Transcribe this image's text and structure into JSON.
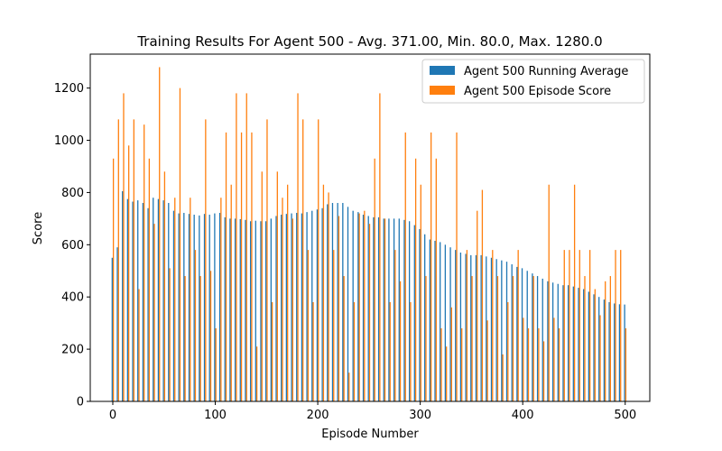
{
  "chart_data": {
    "type": "bar",
    "title": "Training Results For Agent 500 - Avg. 371.00, Min. 80.0, Max. 1280.0",
    "xlabel": "Episode Number",
    "ylabel": "Score",
    "xlim": [
      -22,
      524
    ],
    "ylim": [
      0,
      1330
    ],
    "xticks": [
      0,
      100,
      200,
      300,
      400,
      500
    ],
    "yticks": [
      0,
      200,
      400,
      600,
      800,
      1000,
      1200
    ],
    "legend_placement": "top-right",
    "grid": false,
    "x": [
      0,
      5,
      10,
      15,
      20,
      25,
      30,
      35,
      40,
      45,
      50,
      55,
      60,
      65,
      70,
      75,
      80,
      85,
      90,
      95,
      100,
      105,
      110,
      115,
      120,
      125,
      130,
      135,
      140,
      145,
      150,
      155,
      160,
      165,
      170,
      175,
      180,
      185,
      190,
      195,
      200,
      205,
      210,
      215,
      220,
      225,
      230,
      235,
      240,
      245,
      250,
      255,
      260,
      265,
      270,
      275,
      280,
      285,
      290,
      295,
      300,
      305,
      310,
      315,
      320,
      325,
      330,
      335,
      340,
      345,
      350,
      355,
      360,
      365,
      370,
      375,
      380,
      385,
      390,
      395,
      400,
      405,
      410,
      415,
      420,
      425,
      430,
      435,
      440,
      445,
      450,
      455,
      460,
      465,
      470,
      475,
      480,
      485,
      490,
      495,
      500
    ],
    "series": [
      {
        "name": "Agent 500 Running Average",
        "color": "#1f77b4",
        "values": [
          550,
          590,
          805,
          775,
          765,
          770,
          760,
          740,
          780,
          775,
          770,
          760,
          730,
          720,
          722,
          718,
          715,
          712,
          718,
          715,
          720,
          722,
          705,
          700,
          700,
          698,
          695,
          690,
          692,
          690,
          690,
          700,
          710,
          715,
          718,
          720,
          722,
          720,
          725,
          730,
          735,
          740,
          755,
          760,
          760,
          760,
          745,
          730,
          725,
          715,
          710,
          705,
          705,
          700,
          700,
          700,
          700,
          695,
          690,
          675,
          660,
          640,
          620,
          615,
          610,
          600,
          590,
          580,
          570,
          565,
          560,
          560,
          560,
          555,
          550,
          545,
          540,
          535,
          525,
          515,
          510,
          500,
          490,
          480,
          470,
          460,
          455,
          450,
          445,
          445,
          440,
          435,
          430,
          420,
          410,
          400,
          390,
          380,
          375,
          372,
          371
        ]
      },
      {
        "name": "Agent 500 Episode Score",
        "color": "#ff7f0e",
        "values": [
          930,
          1080,
          1180,
          980,
          1080,
          430,
          1060,
          930,
          680,
          1280,
          880,
          510,
          780,
          1200,
          480,
          780,
          580,
          480,
          1080,
          500,
          280,
          780,
          1030,
          830,
          1180,
          1030,
          1180,
          1030,
          210,
          880,
          1080,
          380,
          880,
          780,
          830,
          700,
          1180,
          1080,
          580,
          380,
          1080,
          830,
          800,
          580,
          710,
          480,
          110,
          380,
          720,
          730,
          680,
          930,
          1180,
          700,
          380,
          580,
          460,
          1030,
          380,
          930,
          830,
          480,
          1030,
          930,
          280,
          210,
          360,
          1030,
          280,
          580,
          480,
          730,
          810,
          310,
          580,
          480,
          180,
          380,
          480,
          580,
          320,
          280,
          480,
          280,
          230,
          830,
          320,
          280,
          580,
          580,
          830,
          580,
          480,
          580,
          430,
          330,
          460,
          480,
          580,
          580,
          280
        ]
      }
    ]
  }
}
